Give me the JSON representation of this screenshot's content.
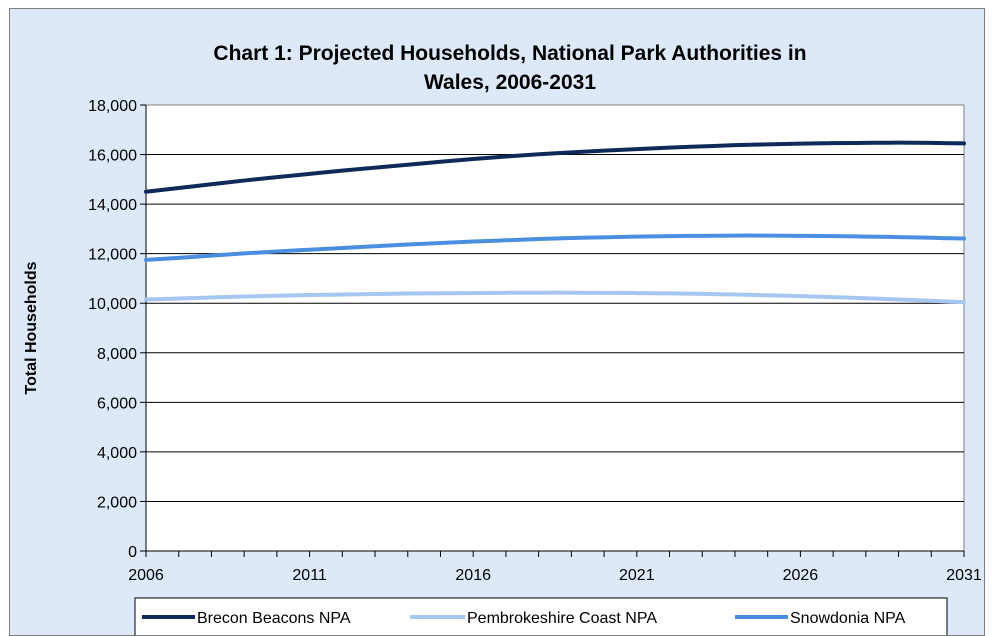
{
  "chart_data": {
    "type": "line",
    "title": "Chart 1: Projected Households, National Park Authorities in Wales, 2006-2031",
    "title_lines": [
      "Chart 1: Projected Households, National Park Authorities in",
      "Wales, 2006-2031"
    ],
    "xlabel": "",
    "ylabel": "Total Households",
    "x": [
      2006,
      2007,
      2008,
      2009,
      2010,
      2011,
      2012,
      2013,
      2014,
      2015,
      2016,
      2017,
      2018,
      2019,
      2020,
      2021,
      2022,
      2023,
      2024,
      2025,
      2026,
      2027,
      2028,
      2029,
      2030,
      2031
    ],
    "x_ticks": [
      "2006",
      "2011",
      "2016",
      "2021",
      "2026",
      "2031"
    ],
    "y_ticks": [
      "0",
      "2,000",
      "4,000",
      "6,000",
      "8,000",
      "10,000",
      "12,000",
      "14,000",
      "16,000",
      "18,000"
    ],
    "xlim": [
      2006,
      2031
    ],
    "ylim": [
      0,
      18000
    ],
    "grid": "horizontal",
    "legend_position": "bottom",
    "series": [
      {
        "name": "Brecon Beacons NPA",
        "color": "#0f2a58",
        "values": [
          14500,
          14650,
          14800,
          14950,
          15090,
          15220,
          15350,
          15470,
          15590,
          15710,
          15820,
          15920,
          16010,
          16090,
          16160,
          16220,
          16280,
          16330,
          16380,
          16410,
          16440,
          16460,
          16470,
          16480,
          16470,
          16450
        ]
      },
      {
        "name": "Pembrokeshire Coast NPA",
        "color": "#a6c8f0",
        "values": [
          10150,
          10190,
          10230,
          10270,
          10300,
          10330,
          10350,
          10370,
          10390,
          10400,
          10410,
          10420,
          10425,
          10425,
          10420,
          10410,
          10395,
          10375,
          10350,
          10320,
          10285,
          10245,
          10200,
          10150,
          10100,
          10040
        ]
      },
      {
        "name": "Snowdonia NPA",
        "color": "#4a8ee0",
        "values": [
          11750,
          11830,
          11920,
          12010,
          12090,
          12160,
          12230,
          12300,
          12370,
          12430,
          12490,
          12540,
          12590,
          12630,
          12660,
          12690,
          12710,
          12720,
          12730,
          12730,
          12720,
          12710,
          12690,
          12670,
          12640,
          12610
        ]
      }
    ]
  }
}
